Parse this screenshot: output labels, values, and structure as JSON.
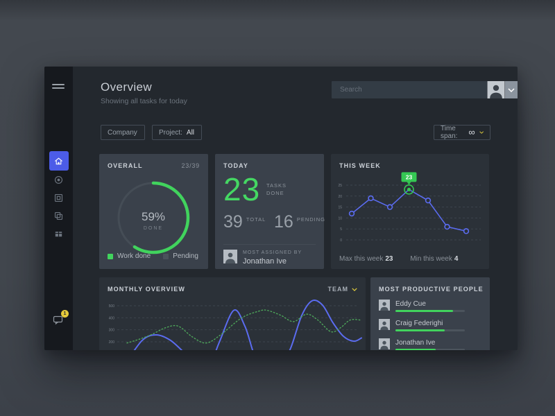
{
  "window": {
    "title": "Overview",
    "subtitle": "Showing all tasks for today"
  },
  "header": {
    "search_placeholder": "Search",
    "avatar_icon": "user-avatar-photo"
  },
  "filters": {
    "company_label": "Company",
    "project_label": "Project:",
    "project_value": "All",
    "time_span_label": "Time span:",
    "time_span_value": "∞"
  },
  "sidebar": {
    "icons": [
      "hamburger-menu-icon",
      "home-icon",
      "target-icon",
      "box-icon",
      "copy-icon",
      "feed-icon",
      "chat-icon"
    ],
    "active_item": "home",
    "chat_badge": "1"
  },
  "colors": {
    "accent_green": "#41d35d",
    "accent_blue": "#5b6cf0",
    "accent_yellow": "#d8c63e",
    "active_nav_blue": "#4c5ce8"
  },
  "cards": {
    "overall": {
      "title": "OVERALL",
      "ratio": "23/39",
      "percent": "59%",
      "percent_value": 59,
      "center_label": "DONE",
      "legend": [
        {
          "label": "Work done",
          "color": "#41d35d"
        },
        {
          "label": "Pending",
          "color": "#4a525b"
        }
      ]
    },
    "today": {
      "title": "TODAY",
      "done": "23",
      "done_label_line1": "TASKS",
      "done_label_line2": "DONE",
      "total": "39",
      "total_label": "TOTAL",
      "pending": "16",
      "pending_label": "PENDING",
      "assigned_label": "MOST ASSIGNED BY",
      "assigned_name": "Jonathan Ive"
    },
    "this_week": {
      "title": "THIS WEEK",
      "max_label": "Max this week",
      "max_value": "23",
      "min_label": "Min this week",
      "min_value": "4",
      "chart_data": {
        "type": "line",
        "values": [
          12,
          19,
          15,
          23,
          18,
          6,
          4
        ],
        "y_ticks": [
          25,
          20,
          15,
          10,
          5,
          0
        ],
        "ylim": [
          0,
          25
        ],
        "highlight_index": 3,
        "highlight_badge": "23",
        "line_color": "#5b6cf0",
        "highlight_color": "#35c853",
        "grid": "dashed"
      }
    },
    "monthly": {
      "title": "MONTHLY OVERVIEW",
      "team_label": "TEAM",
      "chart_data": {
        "type": "line",
        "y_ticks": [
          500,
          400,
          300,
          200
        ],
        "ylim_visible": [
          200,
          500
        ],
        "grid": "dashed",
        "series": [
          {
            "name": "team-blue",
            "style": "solid",
            "color": "#5b6cf0",
            "points": [
              [
                38,
                20
              ],
              [
                62,
                212
              ],
              [
                82,
                258
              ],
              [
                102,
                215
              ],
              [
                122,
                112
              ],
              [
                140,
                -5
              ],
              [
                158,
                -10
              ],
              [
                173,
                195
              ],
              [
                194,
                462
              ],
              [
                210,
                330
              ],
              [
                222,
                115
              ],
              [
                232,
                -15
              ],
              [
                248,
                -45
              ],
              [
                262,
                5
              ],
              [
                276,
                148
              ],
              [
                292,
                420
              ],
              [
                307,
                542
              ],
              [
                322,
                505
              ],
              [
                337,
                358
              ],
              [
                352,
                246
              ],
              [
                367,
                205
              ],
              [
                378,
                232
              ]
            ]
          },
          {
            "name": "team-green",
            "style": "dotted",
            "color": "#4ea75a",
            "points": [
              [
                40,
                190
              ],
              [
                58,
                222
              ],
              [
                76,
                262
              ],
              [
                96,
                318
              ],
              [
                114,
                330
              ],
              [
                134,
                242
              ],
              [
                154,
                190
              ],
              [
                175,
                258
              ],
              [
                205,
                398
              ],
              [
                230,
                455
              ],
              [
                242,
                462
              ],
              [
                262,
                420
              ],
              [
                280,
                368
              ],
              [
                299,
                430
              ],
              [
                315,
                382
              ],
              [
                334,
                284
              ],
              [
                348,
                318
              ],
              [
                362,
                382
              ],
              [
                378,
                380
              ]
            ]
          }
        ]
      }
    },
    "people": {
      "title": "MOST PRODUCTIVE PEOPLE",
      "members": [
        {
          "name": "Eddy Cue",
          "progress": 83
        },
        {
          "name": "Craig Federighi",
          "progress": 71
        },
        {
          "name": "Jonathan Ive",
          "progress": 58
        }
      ]
    }
  }
}
